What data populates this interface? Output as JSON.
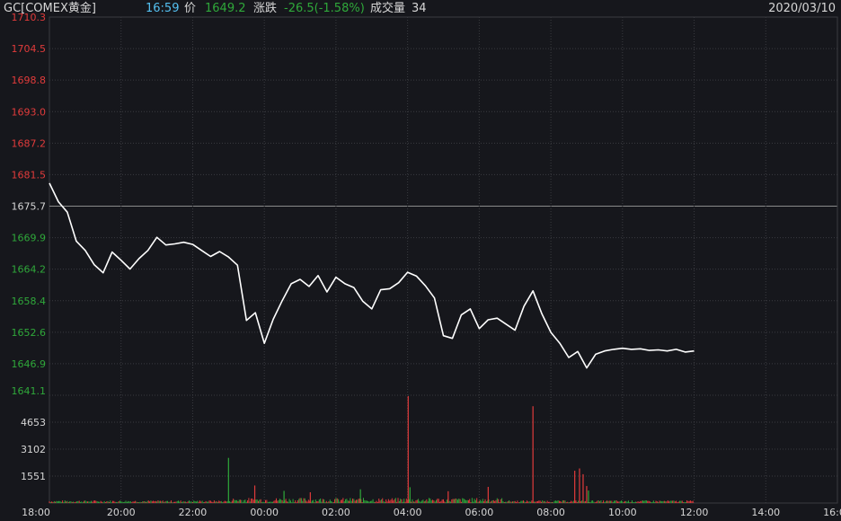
{
  "header": {
    "symbol": "GC[COMEX黄金]",
    "time": "16:59",
    "price_label": "价",
    "price": "1649.2",
    "change_label": "涨跌",
    "change": "-26.5(-1.58%)",
    "volume_label": "成交量",
    "volume": "34",
    "date": "2020/03/10"
  },
  "colors": {
    "background": "#16171c",
    "grid": "#3a3b40",
    "up": "#e23b3b",
    "down": "#2fa83a",
    "neutral": "#d6d6d6",
    "line": "#ffffff",
    "time": "#54c0f0"
  },
  "chart_data": [
    {
      "type": "line",
      "title": "",
      "ylim": [
        1641.1,
        1710.3
      ],
      "y_ticks": [
        "1710.3",
        "1704.5",
        "1698.8",
        "1693.0",
        "1687.2",
        "1681.5",
        "1675.7",
        "1669.9",
        "1664.2",
        "1658.4",
        "1652.6",
        "1646.9",
        "1641.1"
      ],
      "prev_close": 1675.7,
      "x_ticks": [
        "18:00",
        "20:00",
        "22:00",
        "00:00",
        "02:00",
        "04:00",
        "06:00",
        "08:00",
        "10:00",
        "12:00",
        "14:00",
        "16:00"
      ],
      "series": [
        {
          "values": [
            [
              0,
              1679.9
            ],
            [
              15,
              1676.5
            ],
            [
              30,
              1674.6
            ],
            [
              45,
              1669.3
            ],
            [
              60,
              1667.6
            ],
            [
              75,
              1665.0
            ],
            [
              90,
              1663.5
            ],
            [
              105,
              1667.3
            ],
            [
              120,
              1665.8
            ],
            [
              135,
              1664.2
            ],
            [
              150,
              1666.1
            ],
            [
              165,
              1667.6
            ],
            [
              180,
              1670.0
            ],
            [
              195,
              1668.6
            ],
            [
              210,
              1668.8
            ],
            [
              225,
              1669.1
            ],
            [
              240,
              1668.7
            ],
            [
              255,
              1667.6
            ],
            [
              270,
              1666.5
            ],
            [
              285,
              1667.4
            ],
            [
              300,
              1666.4
            ],
            [
              315,
              1664.9
            ],
            [
              330,
              1654.8
            ],
            [
              345,
              1656.2
            ],
            [
              360,
              1650.6
            ],
            [
              375,
              1655.0
            ],
            [
              390,
              1658.4
            ],
            [
              405,
              1661.5
            ],
            [
              420,
              1662.3
            ],
            [
              435,
              1661.0
            ],
            [
              450,
              1663.0
            ],
            [
              465,
              1660.0
            ],
            [
              480,
              1662.7
            ],
            [
              495,
              1661.5
            ],
            [
              510,
              1660.8
            ],
            [
              525,
              1658.3
            ],
            [
              540,
              1656.9
            ],
            [
              555,
              1660.4
            ],
            [
              570,
              1660.6
            ],
            [
              585,
              1661.7
            ],
            [
              600,
              1663.6
            ],
            [
              615,
              1662.9
            ],
            [
              630,
              1661.1
            ],
            [
              645,
              1658.9
            ],
            [
              660,
              1652.0
            ],
            [
              675,
              1651.5
            ],
            [
              690,
              1655.8
            ],
            [
              705,
              1656.9
            ],
            [
              720,
              1653.3
            ],
            [
              735,
              1654.9
            ],
            [
              750,
              1655.2
            ],
            [
              765,
              1654.1
            ],
            [
              780,
              1653.0
            ],
            [
              795,
              1657.4
            ],
            [
              810,
              1660.2
            ],
            [
              825,
              1656.0
            ],
            [
              840,
              1652.6
            ],
            [
              855,
              1650.6
            ],
            [
              870,
              1648.0
            ],
            [
              885,
              1649.1
            ],
            [
              900,
              1646.1
            ],
            [
              915,
              1648.6
            ],
            [
              930,
              1649.2
            ],
            [
              945,
              1649.5
            ],
            [
              960,
              1649.7
            ],
            [
              975,
              1649.5
            ],
            [
              990,
              1649.6
            ],
            [
              1005,
              1649.3
            ],
            [
              1020,
              1649.4
            ],
            [
              1035,
              1649.2
            ],
            [
              1050,
              1649.5
            ],
            [
              1065,
              1649.0
            ],
            [
              1080,
              1649.2
            ]
          ]
        }
      ]
    },
    {
      "type": "bar",
      "title": "",
      "ylim": [
        0,
        6204
      ],
      "y_ticks": [
        "4653",
        "3102",
        "1551"
      ],
      "spikes": [
        {
          "minute": 300,
          "value": 2600,
          "dir": "down"
        },
        {
          "minute": 344,
          "value": 1010,
          "dir": "up"
        },
        {
          "minute": 393,
          "value": 700,
          "dir": "down"
        },
        {
          "minute": 437,
          "value": 620,
          "dir": "up"
        },
        {
          "minute": 521,
          "value": 790,
          "dir": "down"
        },
        {
          "minute": 601,
          "value": 6152,
          "dir": "up"
        },
        {
          "minute": 604,
          "value": 910,
          "dir": "down"
        },
        {
          "minute": 668,
          "value": 680,
          "dir": "up"
        },
        {
          "minute": 735,
          "value": 930,
          "dir": "up"
        },
        {
          "minute": 810,
          "value": 5572,
          "dir": "up"
        },
        {
          "minute": 880,
          "value": 1860,
          "dir": "up"
        },
        {
          "minute": 888,
          "value": 1990,
          "dir": "up"
        },
        {
          "minute": 894,
          "value": 1660,
          "dir": "up"
        },
        {
          "minute": 900,
          "value": 980,
          "dir": "up"
        },
        {
          "minute": 903,
          "value": 720,
          "dir": "down"
        }
      ]
    }
  ]
}
